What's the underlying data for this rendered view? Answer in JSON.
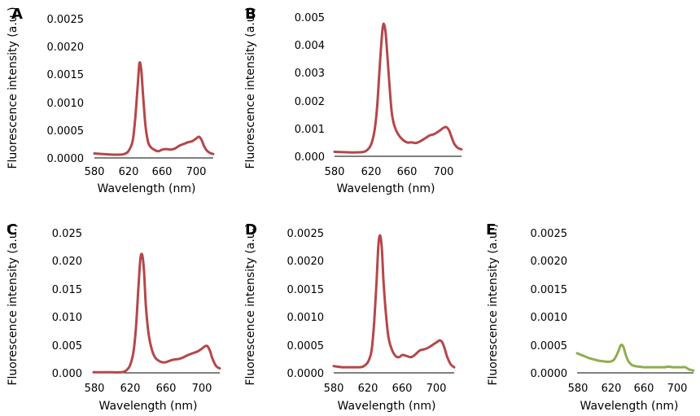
{
  "chart_data": [
    {
      "panel": "A",
      "type": "line",
      "xlabel": "Wavelength (nm)",
      "ylabel": "Fluorescence intensity (a.u.)",
      "xlim": [
        580,
        720
      ],
      "ylim": [
        0,
        0.0025
      ],
      "xticks": [
        "580",
        "620",
        "660",
        "700"
      ],
      "yticks": [
        "0.0000",
        "0.0005",
        "0.0010",
        "0.0015",
        "0.0020",
        "0.0025"
      ],
      "color": "#b5474a",
      "x": [
        580,
        590,
        600,
        610,
        615,
        620,
        625,
        628,
        631,
        633,
        635,
        637,
        640,
        643,
        646,
        650,
        655,
        660,
        665,
        670,
        675,
        680,
        685,
        690,
        695,
        700,
        703,
        706,
        709,
        712,
        716,
        720
      ],
      "y": [
        8e-05,
        7e-05,
        6e-05,
        6e-05,
        7e-05,
        0.00012,
        0.0003,
        0.0007,
        0.0013,
        0.0017,
        0.0016,
        0.0012,
        0.0006,
        0.0003,
        0.0002,
        0.00015,
        0.00012,
        0.00015,
        0.00016,
        0.00015,
        0.00017,
        0.00022,
        0.00025,
        0.00028,
        0.0003,
        0.00035,
        0.00038,
        0.00033,
        0.00022,
        0.00014,
        9e-05,
        7e-05
      ]
    },
    {
      "panel": "B",
      "type": "line",
      "xlabel": "Wavelength (nm)",
      "ylabel": "Fluorescence intensity (a.u.)",
      "xlim": [
        580,
        720
      ],
      "ylim": [
        0,
        0.005
      ],
      "xticks": [
        "580",
        "620",
        "660",
        "700"
      ],
      "yticks": [
        "0.000",
        "0.001",
        "0.002",
        "0.003",
        "0.004",
        "0.005"
      ],
      "color": "#b5474a",
      "x": [
        580,
        590,
        600,
        610,
        615,
        620,
        624,
        627,
        630,
        633,
        635,
        637,
        640,
        643,
        646,
        650,
        655,
        660,
        665,
        670,
        675,
        680,
        685,
        690,
        695,
        700,
        703,
        706,
        709,
        712,
        716,
        720
      ],
      "y": [
        0.00016,
        0.00015,
        0.00014,
        0.00015,
        0.0002,
        0.0004,
        0.0009,
        0.0018,
        0.0033,
        0.0046,
        0.0047,
        0.0042,
        0.0028,
        0.0016,
        0.0011,
        0.0008,
        0.0006,
        0.0005,
        0.0005,
        0.00048,
        0.00055,
        0.00065,
        0.00075,
        0.0008,
        0.0009,
        0.00102,
        0.00105,
        0.00095,
        0.0007,
        0.00045,
        0.0003,
        0.00025
      ]
    },
    {
      "panel": "C",
      "type": "line",
      "xlabel": "Wavelength (nm)",
      "ylabel": "Fluorescence intensity (a.u.)",
      "xlim": [
        580,
        720
      ],
      "ylim": [
        0,
        0.025
      ],
      "xticks": [
        "580",
        "620",
        "660",
        "700"
      ],
      "yticks": [
        "0.000",
        "0.005",
        "0.010",
        "0.015",
        "0.020",
        "0.025"
      ],
      "color": "#b5474a",
      "x": [
        580,
        590,
        600,
        610,
        615,
        620,
        624,
        627,
        630,
        632,
        634,
        636,
        638,
        641,
        644,
        648,
        652,
        656,
        660,
        665,
        670,
        675,
        680,
        685,
        690,
        695,
        700,
        703,
        706,
        709,
        712,
        716,
        720
      ],
      "y": [
        0.0001,
        0.0001,
        0.0001,
        0.0001,
        0.0003,
        0.0012,
        0.0035,
        0.008,
        0.016,
        0.0205,
        0.021,
        0.018,
        0.012,
        0.007,
        0.0045,
        0.0028,
        0.0022,
        0.0019,
        0.0019,
        0.0022,
        0.0024,
        0.0025,
        0.0028,
        0.0032,
        0.0035,
        0.0038,
        0.0043,
        0.0047,
        0.0048,
        0.004,
        0.0025,
        0.0012,
        0.0008
      ]
    },
    {
      "panel": "D",
      "type": "line",
      "xlabel": "Wavelength (nm)",
      "ylabel": "Fluorescence intensity (a.u.)",
      "xlim": [
        580,
        720
      ],
      "ylim": [
        0,
        0.0025
      ],
      "xticks": [
        "580",
        "620",
        "660",
        "700"
      ],
      "yticks": [
        "0.0000",
        "0.0005",
        "0.0010",
        "0.0015",
        "0.0020",
        "0.0025"
      ],
      "color": "#b5474a",
      "x": [
        580,
        590,
        600,
        610,
        615,
        620,
        624,
        627,
        630,
        632,
        634,
        636,
        638,
        641,
        644,
        648,
        652,
        656,
        660,
        665,
        670,
        675,
        680,
        685,
        690,
        695,
        700,
        703,
        706,
        709,
        712,
        716,
        720
      ],
      "y": [
        0.00012,
        0.0001,
        0.0001,
        0.0001,
        0.00012,
        0.0002,
        0.0004,
        0.0009,
        0.0017,
        0.0023,
        0.00245,
        0.0022,
        0.0016,
        0.001,
        0.0006,
        0.0004,
        0.0003,
        0.00028,
        0.00032,
        0.0003,
        0.00028,
        0.00033,
        0.0004,
        0.00042,
        0.00045,
        0.0005,
        0.00055,
        0.00058,
        0.00055,
        0.00043,
        0.00028,
        0.00015,
        0.0001
      ]
    },
    {
      "panel": "E",
      "type": "line",
      "xlabel": "Wavelength (nm)",
      "ylabel": "Fluorescence intensity (a.u.)",
      "xlim": [
        580,
        720
      ],
      "ylim": [
        0,
        0.0025
      ],
      "xticks": [
        "580",
        "620",
        "660",
        "700"
      ],
      "yticks": [
        "0.0000",
        "0.0005",
        "0.0010",
        "0.0015",
        "0.0020",
        "0.0025"
      ],
      "color": "#8fad4f",
      "x": [
        580,
        585,
        590,
        595,
        600,
        605,
        610,
        615,
        620,
        624,
        627,
        630,
        632,
        634,
        636,
        639,
        642,
        646,
        650,
        655,
        660,
        665,
        670,
        675,
        680,
        685,
        690,
        695,
        700,
        705,
        710,
        715,
        720
      ],
      "y": [
        0.00035,
        0.00032,
        0.00029,
        0.00026,
        0.00024,
        0.00022,
        0.00021,
        0.0002,
        0.0002,
        0.00023,
        0.0003,
        0.0004,
        0.00048,
        0.0005,
        0.00045,
        0.0003,
        0.0002,
        0.00014,
        0.00012,
        0.00011,
        0.0001,
        0.0001,
        0.0001,
        0.0001,
        0.0001,
        0.0001,
        0.00011,
        0.0001,
        0.0001,
        0.0001,
        0.0001,
        6e-05,
        4e-05
      ]
    }
  ]
}
